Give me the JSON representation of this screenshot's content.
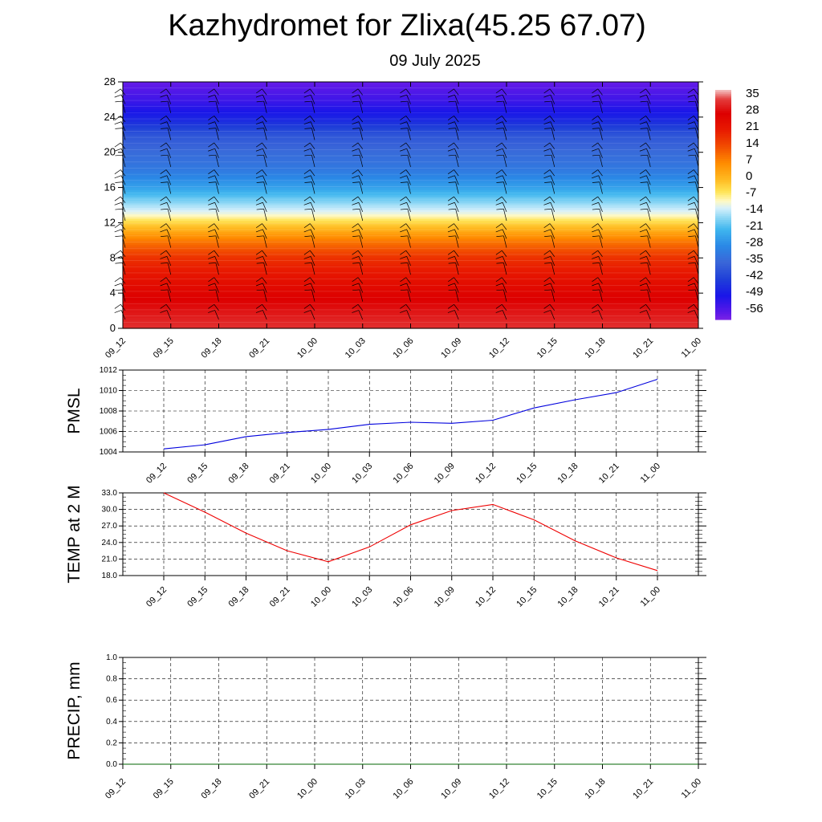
{
  "header": {
    "title": "Kazhydromet for Zlixa(45.25 67.07)",
    "subtitle": "09 July 2025"
  },
  "time_labels": [
    "09_12",
    "09_15",
    "09_18",
    "09_21",
    "10_00",
    "10_03",
    "10_06",
    "10_09",
    "10_12",
    "10_15",
    "10_18",
    "10_21",
    "11_00"
  ],
  "colors": {
    "pmsl_line": "#0000dd",
    "temp_line": "#ee0000",
    "precip_line": "#006400",
    "grid": "#000000",
    "wind_barb": "#000000"
  },
  "chart_data": [
    {
      "type": "heatmap",
      "name": "cross-section",
      "x": [
        "09_12",
        "09_15",
        "09_18",
        "09_21",
        "10_00",
        "10_03",
        "10_06",
        "10_09",
        "10_12",
        "10_15",
        "10_18",
        "10_21",
        "11_00"
      ],
      "ylim": [
        0,
        28
      ],
      "yticks": [
        0,
        4,
        8,
        12,
        16,
        20,
        24,
        28
      ],
      "colorbar": {
        "labels": [
          "35",
          "28",
          "21",
          "14",
          "7",
          "0",
          "-7",
          "-14",
          "-21",
          "-28",
          "-35",
          "-42",
          "-49",
          "-56"
        ],
        "range": [
          -59,
          38
        ],
        "stops": [
          {
            "v": 38,
            "c": "#f4c6c6"
          },
          {
            "v": 34,
            "c": "#e33b3b"
          },
          {
            "v": 28,
            "c": "#dd0000"
          },
          {
            "v": 21,
            "c": "#e81a00"
          },
          {
            "v": 14,
            "c": "#f24d00"
          },
          {
            "v": 7,
            "c": "#ff8c00"
          },
          {
            "v": 0,
            "c": "#ffbb22"
          },
          {
            "v": -5,
            "c": "#ffe455"
          },
          {
            "v": -9,
            "c": "#fff9c4"
          },
          {
            "v": -12,
            "c": "#d6f0fb"
          },
          {
            "v": -16,
            "c": "#8ed7f5"
          },
          {
            "v": -21,
            "c": "#3fb6ee"
          },
          {
            "v": -28,
            "c": "#2a88e6"
          },
          {
            "v": -35,
            "c": "#3a66d8"
          },
          {
            "v": -42,
            "c": "#1f3fd8"
          },
          {
            "v": -49,
            "c": "#1a16e8"
          },
          {
            "v": -56,
            "c": "#5a18e8"
          },
          {
            "v": -59,
            "c": "#7a22e6"
          }
        ]
      },
      "vertical_profile": [
        {
          "z": 0,
          "t": 33
        },
        {
          "z": 4,
          "t": 27
        },
        {
          "z": 8,
          "t": 18
        },
        {
          "z": 10,
          "t": 9
        },
        {
          "z": 12,
          "t": -3
        },
        {
          "z": 13,
          "t": -10
        },
        {
          "z": 14.5,
          "t": -17
        },
        {
          "z": 16,
          "t": -24
        },
        {
          "z": 18,
          "t": -31
        },
        {
          "z": 20,
          "t": -34
        },
        {
          "z": 22,
          "t": -38
        },
        {
          "z": 24,
          "t": -47
        },
        {
          "z": 26,
          "t": -53
        },
        {
          "z": 28,
          "t": -57
        }
      ]
    },
    {
      "type": "line",
      "name": "pmsl",
      "ylabel": "PMSL",
      "x": [
        "09_12",
        "09_15",
        "09_18",
        "09_21",
        "10_00",
        "10_03",
        "10_06",
        "10_09",
        "10_12",
        "10_15",
        "10_18",
        "10_21",
        "11_00"
      ],
      "values": [
        1004.3,
        1004.7,
        1005.5,
        1005.9,
        1006.2,
        1006.7,
        1006.9,
        1006.8,
        1007.1,
        1008.3,
        1009.1,
        1009.8,
        1011.1
      ],
      "ylim": [
        1004,
        1012
      ],
      "yticks": [
        "1004",
        "1006",
        "1008",
        "1010",
        "1012"
      ]
    },
    {
      "type": "line",
      "name": "temp",
      "ylabel": "TEMP at 2 M",
      "x": [
        "09_12",
        "09_15",
        "09_18",
        "09_21",
        "10_00",
        "10_03",
        "10_06",
        "10_09",
        "10_12",
        "10_15",
        "10_18",
        "10_21",
        "11_00"
      ],
      "values": [
        33.0,
        29.5,
        25.7,
        22.5,
        20.5,
        23.2,
        27.2,
        29.8,
        30.9,
        28.1,
        24.3,
        21.2,
        18.9
      ],
      "ylim": [
        18,
        33
      ],
      "yticks": [
        "18.0",
        "21.0",
        "24.0",
        "27.0",
        "30.0",
        "33.0"
      ]
    },
    {
      "type": "line",
      "name": "precip",
      "ylabel": "PRECIP, mm",
      "x": [
        "09_12",
        "09_15",
        "09_18",
        "09_21",
        "10_00",
        "10_03",
        "10_06",
        "10_09",
        "10_12",
        "10_15",
        "10_18",
        "10_21",
        "11_00"
      ],
      "values": [
        0,
        0,
        0,
        0,
        0,
        0,
        0,
        0,
        0,
        0,
        0,
        0,
        0
      ],
      "ylim": [
        0,
        1
      ],
      "yticks": [
        "0.0",
        "0.2",
        "0.4",
        "0.6",
        "0.8",
        "1.0"
      ]
    }
  ]
}
